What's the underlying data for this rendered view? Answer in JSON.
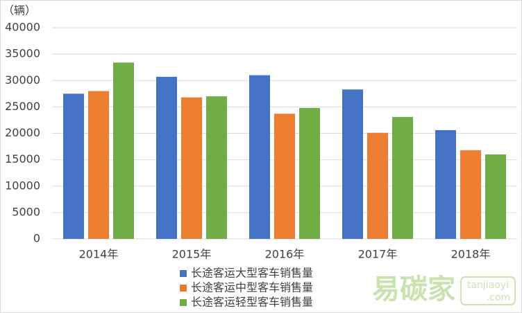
{
  "chart_data": {
    "type": "bar",
    "y_unit": "（辆）",
    "categories": [
      "2014年",
      "2015年",
      "2016年",
      "2017年",
      "2018年"
    ],
    "series": [
      {
        "name": "长途客运大型客车销售量",
        "color": "#4472c4",
        "values": [
          27500,
          30700,
          31000,
          28300,
          20600
        ]
      },
      {
        "name": "长途客运中型客车销售量",
        "color": "#ed7d31",
        "values": [
          28000,
          26800,
          23700,
          20100,
          16800
        ]
      },
      {
        "name": "长途客运轻型客车销售量",
        "color": "#70ad47",
        "values": [
          33400,
          27000,
          24800,
          23100,
          16000
        ]
      }
    ],
    "ylim": [
      0,
      40000
    ],
    "yticks": [
      0,
      5000,
      10000,
      15000,
      20000,
      25000,
      30000,
      35000,
      40000
    ],
    "grid": true,
    "legend": "bottom",
    "watermark": {
      "brand": "易碳家",
      "site": "tanjiaoyi",
      "domain": ".com"
    }
  }
}
